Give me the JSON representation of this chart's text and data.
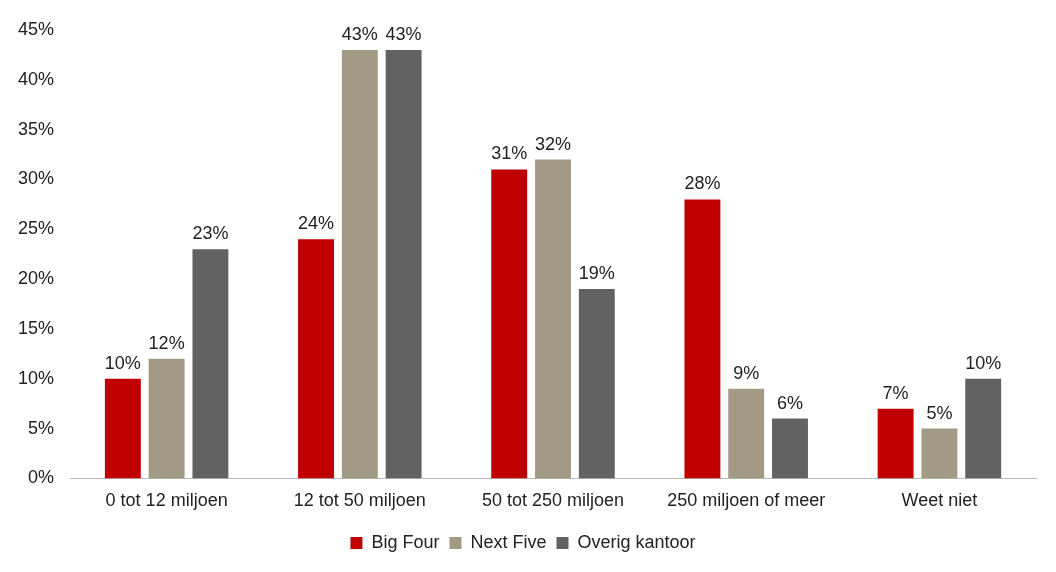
{
  "chart_data": {
    "type": "bar",
    "categories": [
      "0 tot 12 miljoen",
      "12 tot 50 miljoen",
      "50 tot 250 miljoen",
      "250 miljoen of meer",
      "Weet niet"
    ],
    "series": [
      {
        "name": "Big Four",
        "color": "#c00000",
        "values": [
          10,
          24,
          31,
          28,
          7
        ],
        "value_labels": [
          "10%",
          "24%",
          "31%",
          "28%",
          "7%"
        ]
      },
      {
        "name": "Next Five",
        "color": "#a39a86",
        "values": [
          12,
          43,
          32,
          9,
          5
        ],
        "value_labels": [
          "12%",
          "43%",
          "32%",
          "9%",
          "5%"
        ]
      },
      {
        "name": "Overig kantoor",
        "color": "#626262",
        "values": [
          23,
          43,
          19,
          6,
          10
        ],
        "value_labels": [
          "23%",
          "43%",
          "19%",
          "6%",
          "10%"
        ]
      }
    ],
    "ylim": [
      0,
      45
    ],
    "yticks": [
      {
        "value": 0,
        "label": "0%"
      },
      {
        "value": 5,
        "label": "5%"
      },
      {
        "value": 10,
        "label": "10%"
      },
      {
        "value": 15,
        "label": "15%"
      },
      {
        "value": 20,
        "label": "20%"
      },
      {
        "value": 25,
        "label": "25%"
      },
      {
        "value": 30,
        "label": "30%"
      },
      {
        "value": 35,
        "label": "35%"
      },
      {
        "value": 40,
        "label": "40%"
      },
      {
        "value": 45,
        "label": "45%"
      }
    ],
    "grid": false,
    "legend": "bottom"
  }
}
